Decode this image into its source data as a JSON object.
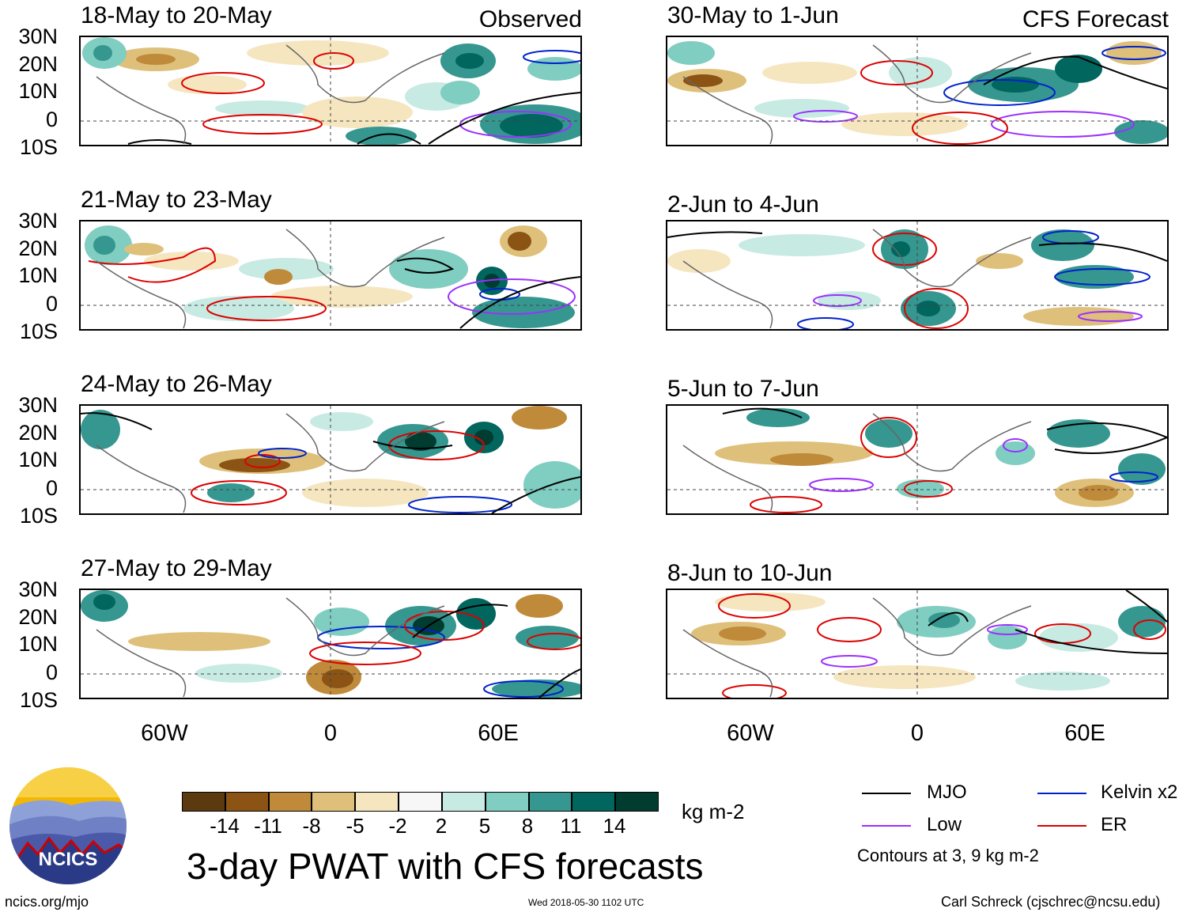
{
  "panels_left": {
    "header": "Observed",
    "titles": [
      "18-May to 20-May",
      "21-May to 23-May",
      "24-May to 26-May",
      "27-May to 29-May"
    ]
  },
  "panels_right": {
    "header": "CFS Forecast",
    "titles": [
      "30-May to 1-Jun",
      "2-Jun to 4-Jun",
      "5-Jun to 7-Jun",
      "8-Jun to 10-Jun"
    ]
  },
  "axes": {
    "lat_labels": [
      "30N",
      "20N",
      "10N",
      "0",
      "10S"
    ],
    "lon_labels": [
      "60W",
      "0",
      "60E"
    ]
  },
  "colorbar": {
    "colors": [
      "#5a3a0e",
      "#8b5314",
      "#bf8a3a",
      "#dfc07a",
      "#f5e6c0",
      "#f7f7f7",
      "#c7eae3",
      "#80cdc1",
      "#35978f",
      "#01665e",
      "#003c30"
    ],
    "labels": [
      "-14",
      "-11",
      "-8",
      "-5",
      "-2",
      "2",
      "5",
      "8",
      "11",
      "14"
    ],
    "units": "kg m-2"
  },
  "title": "3-day PWAT with CFS forecasts",
  "logo": {
    "text": "NCICS"
  },
  "legend": {
    "items": [
      {
        "label": "MJO",
        "color": "#000000"
      },
      {
        "label": "Kelvin x2",
        "color": "#0022cc"
      },
      {
        "label": "Low",
        "color": "#9b30ff"
      },
      {
        "label": "ER",
        "color": "#dd0000"
      }
    ],
    "note": "Contours at 3, 9 kg m-2"
  },
  "footer": {
    "url": "ncics.org/mjo",
    "timestamp": "Wed 2018-05-30 1102 UTC",
    "author": "Carl Schreck (cjschrec@ncsu.edu)"
  }
}
